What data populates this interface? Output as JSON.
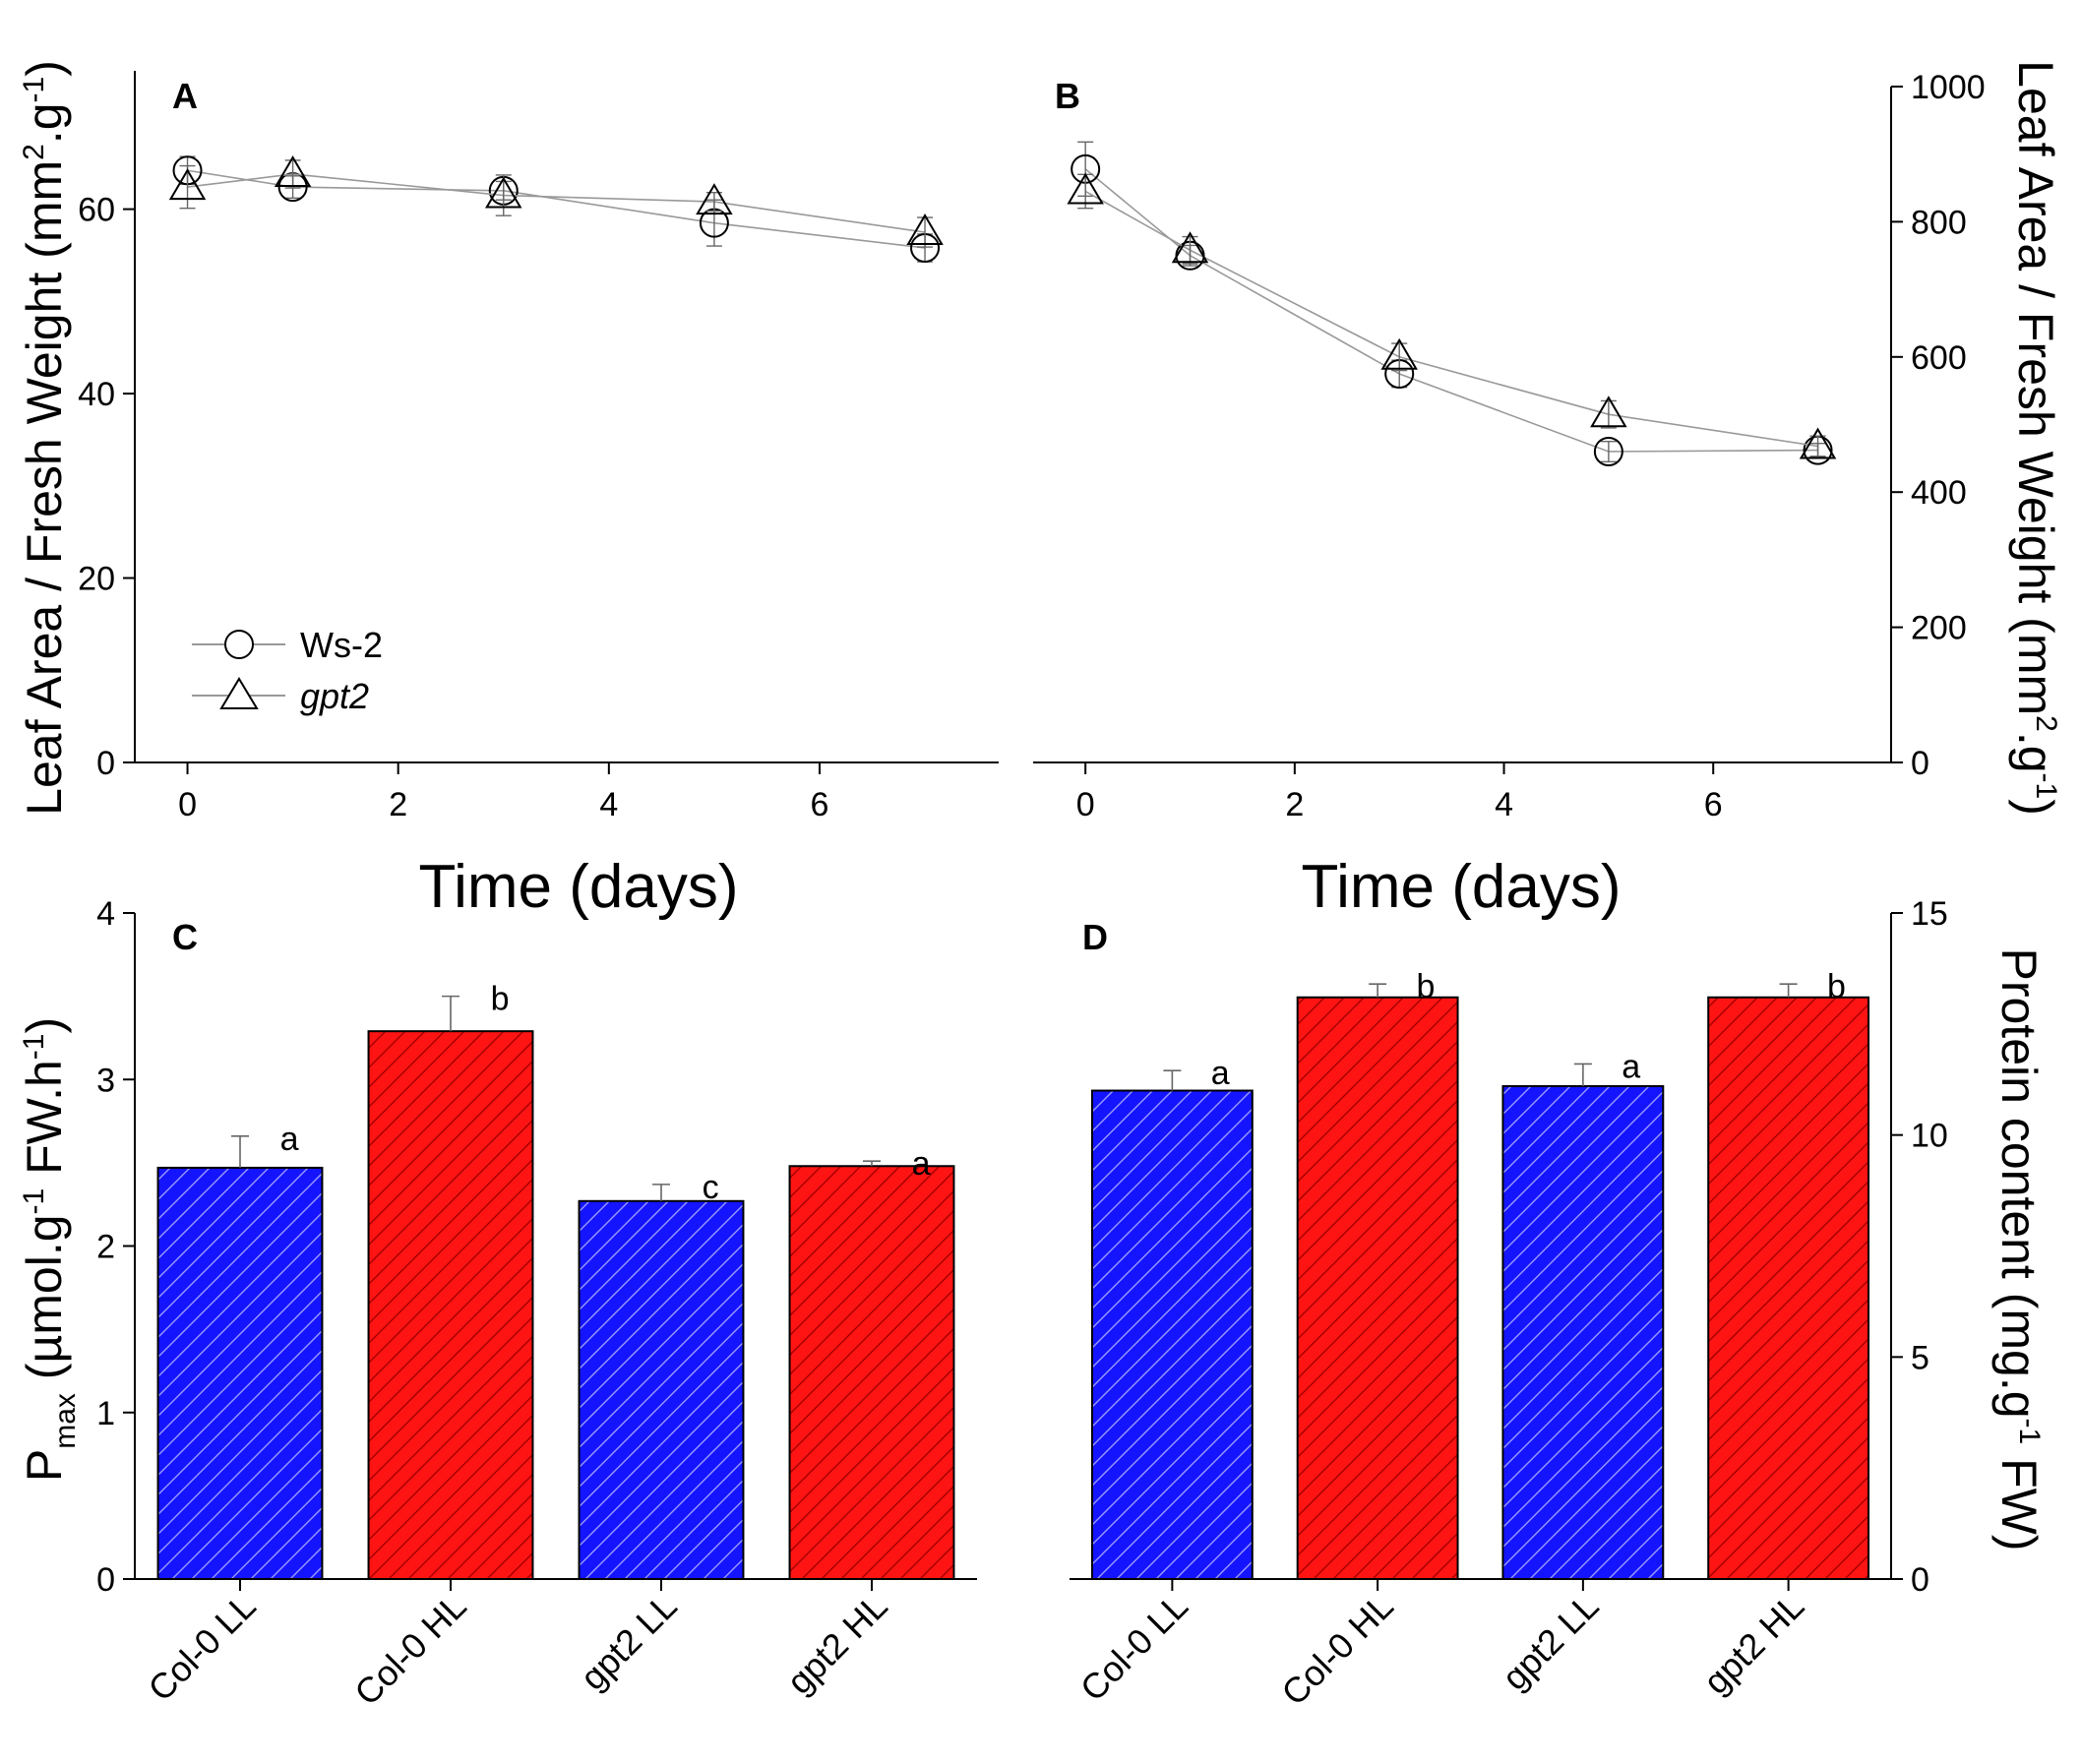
{
  "chart_data": [
    {
      "panel": "A",
      "type": "line",
      "xlabel": "Time (days)",
      "ylabel": "Leaf Area / Fresh Weight (mm2.g-1)",
      "ylabel_parts": {
        "base": "Leaf Area / Fresh Weight (mm",
        "sup1": "2",
        "mid": ".g",
        "sup2": "-1",
        "end": ")"
      },
      "xlim": [
        -0.5,
        7.7
      ],
      "ylim": [
        0,
        75
      ],
      "xticks": [
        0,
        2,
        4,
        6
      ],
      "yticks": [
        0,
        20,
        40,
        60
      ],
      "x": [
        0,
        1,
        3,
        5,
        7
      ],
      "series": [
        {
          "name": "Ws-2",
          "marker": "circle",
          "values": [
            64.2,
            62.4,
            62.0,
            58.5,
            55.8
          ],
          "errors": [
            1.5,
            1.2,
            1.0,
            2.5,
            1.5
          ]
        },
        {
          "name": "gpt2",
          "marker": "triangle",
          "values": [
            62.4,
            63.8,
            61.5,
            60.8,
            57.5
          ],
          "errors": [
            2.3,
            1.5,
            2.2,
            1.0,
            1.6
          ]
        }
      ],
      "legend": [
        {
          "label": "Ws-2",
          "marker": "circle",
          "italic": false
        },
        {
          "label": "gpt2",
          "marker": "triangle",
          "italic": true
        }
      ]
    },
    {
      "panel": "B",
      "type": "line",
      "xlabel": "Time (days)",
      "ylabel": "Leaf Area / Fresh Weight (mm2.g-1)",
      "ylabel_parts": {
        "base": "Leaf Area / Fresh Weight (mm",
        "sup1": "2",
        "mid": ".g",
        "sup2": "-1",
        "end": ")"
      },
      "xlim": [
        -0.5,
        7.7
      ],
      "ylim": [
        0,
        1000
      ],
      "xticks": [
        0,
        2,
        4,
        6
      ],
      "yticks": [
        0,
        200,
        400,
        600,
        800,
        1000
      ],
      "x": [
        0,
        1,
        3,
        5,
        7
      ],
      "series": [
        {
          "name": "Ws-2",
          "marker": "circle",
          "values": [
            878,
            750,
            575,
            460,
            462
          ],
          "errors": [
            40,
            15,
            20,
            15,
            10
          ]
        },
        {
          "name": "gpt2",
          "marker": "triangle",
          "values": [
            845,
            758,
            600,
            515,
            468
          ],
          "errors": [
            25,
            20,
            20,
            20,
            15
          ]
        }
      ]
    },
    {
      "panel": "C",
      "type": "bar",
      "categories": [
        "Col-0 LL",
        "Col-0 HL",
        "gpt2 LL",
        "gpt2 HL"
      ],
      "values": [
        2.47,
        3.29,
        2.27,
        2.48
      ],
      "errors": [
        0.19,
        0.21,
        0.1,
        0.03
      ],
      "significance": [
        "a",
        "b",
        "c",
        "a"
      ],
      "colors": [
        "#1414ff",
        "#ff1414",
        "#1414ff",
        "#ff1414"
      ],
      "ylim": [
        0,
        4
      ],
      "yticks": [
        0,
        1,
        2,
        3,
        4
      ],
      "ylabel": "Pmax (µmol.g-1 FW.h-1)",
      "ylabel_parts": {
        "P": "P",
        "sub": "max",
        "a": " (µmol.g",
        "sup1": "-1",
        "b": " FW.h",
        "sup2": "-1",
        "c": ")"
      }
    },
    {
      "panel": "D",
      "type": "bar",
      "categories": [
        "Col-0 LL",
        "Col-0 HL",
        "gpt2 LL",
        "gpt2 HL"
      ],
      "values": [
        11.0,
        13.1,
        11.1,
        13.1
      ],
      "errors": [
        0.45,
        0.3,
        0.5,
        0.3
      ],
      "significance": [
        "a",
        "b",
        "a",
        "b"
      ],
      "colors": [
        "#1414ff",
        "#ff1414",
        "#1414ff",
        "#ff1414"
      ],
      "ylim": [
        0,
        15
      ],
      "yticks": [
        0,
        5,
        10,
        15
      ],
      "ylabel": "Protein content (mg.g-1 FW)",
      "ylabel_parts": {
        "a": "Protein content (mg.g",
        "sup": "-1",
        "b": " FW)"
      }
    }
  ]
}
